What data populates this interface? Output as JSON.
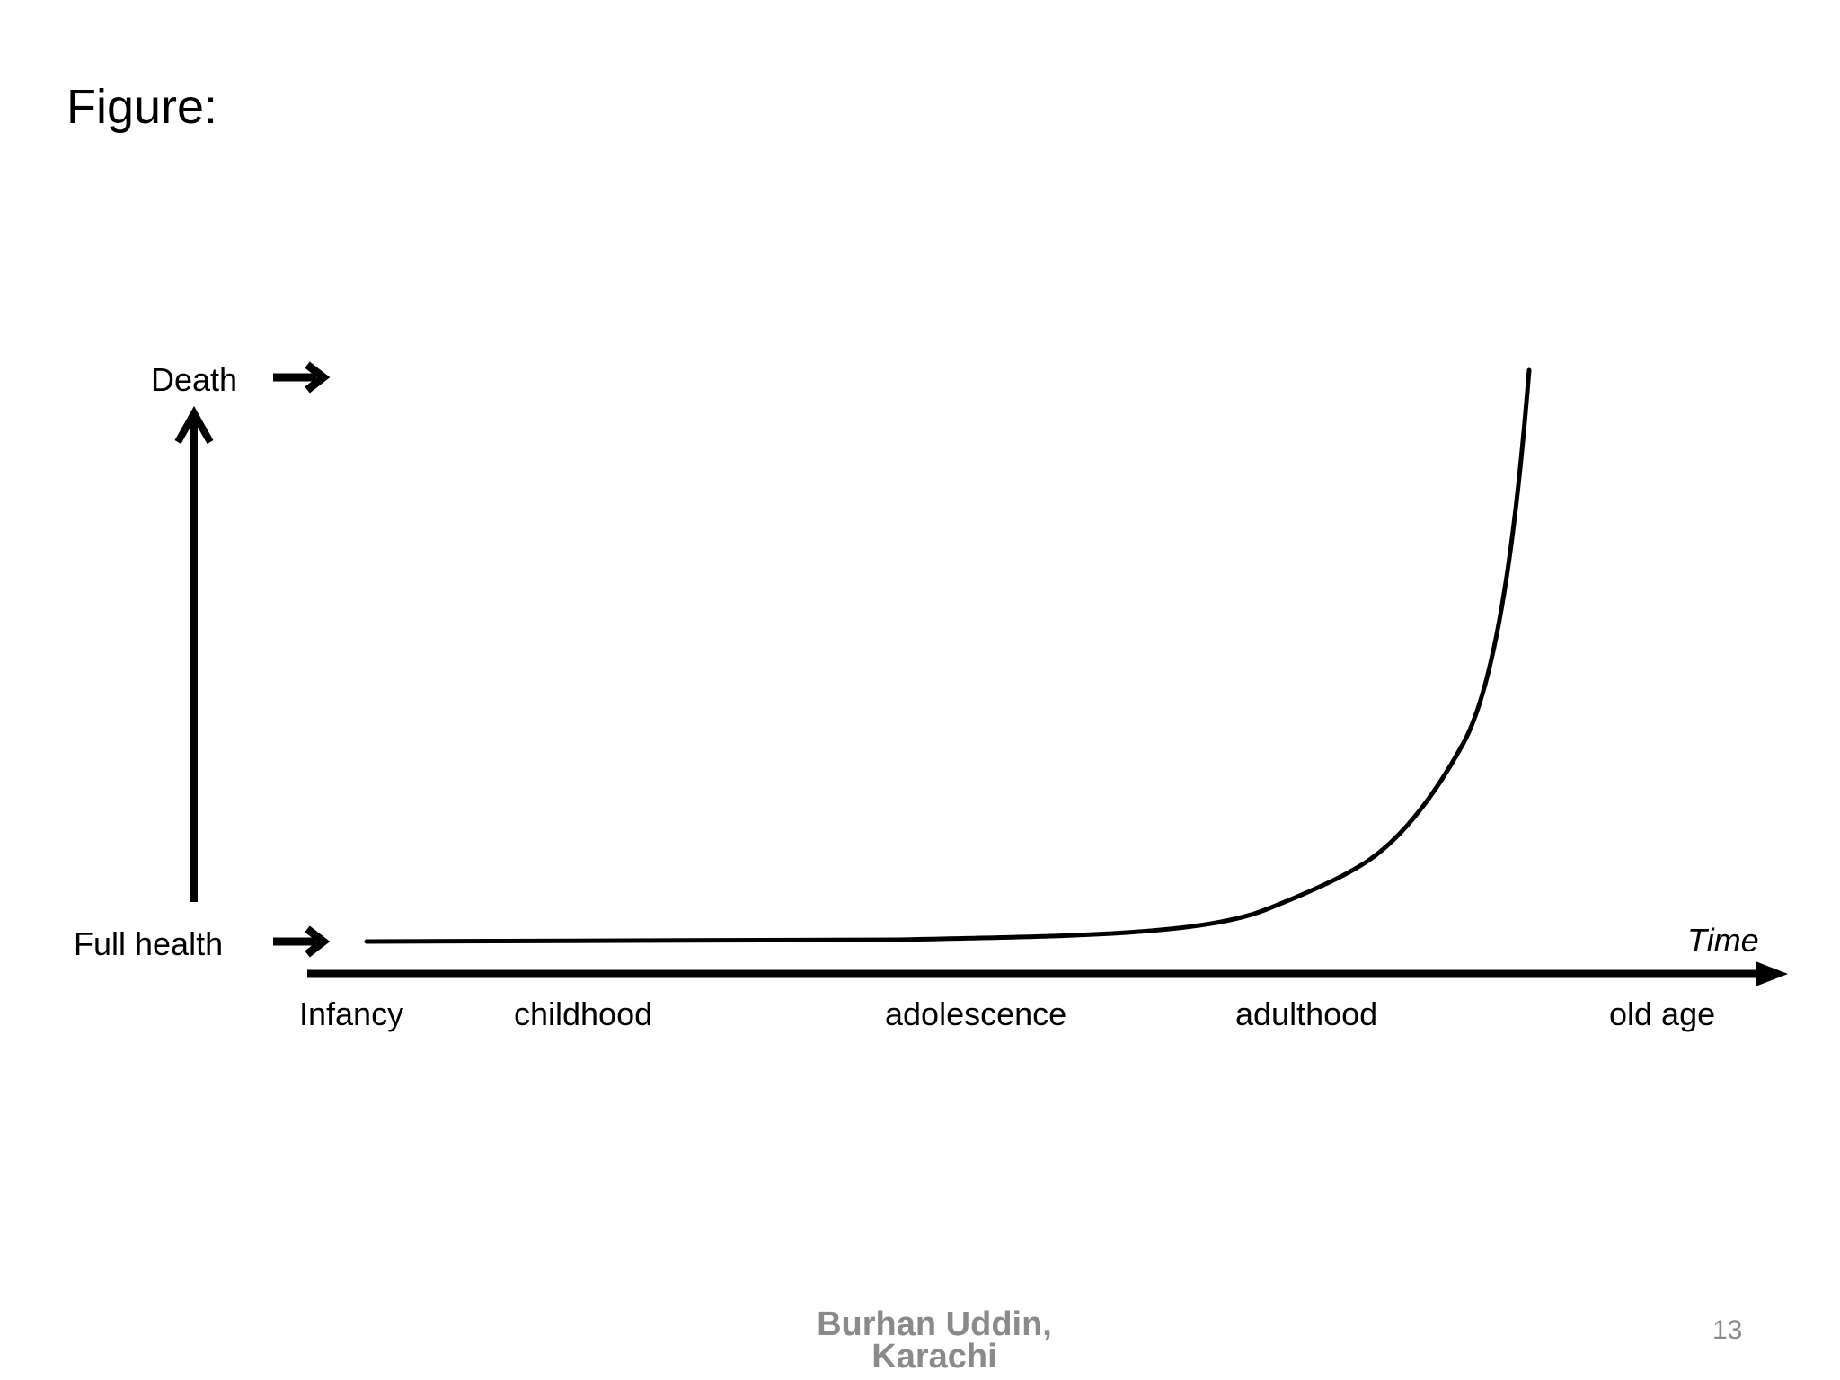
{
  "slide": {
    "title": "Figure:",
    "footer_author_line1": "Burhan Uddin,",
    "footer_author_line2": "Karachi",
    "page_number": "13"
  },
  "diagram": {
    "y_labels": {
      "top": "Death",
      "bottom": "Full health"
    },
    "x_axis_label": "Time",
    "stages": [
      "Infancy",
      "childhood",
      "adolescence",
      "adulthood",
      "old age"
    ],
    "line_color": "#000000",
    "footer_color": "#8a8a8a"
  }
}
